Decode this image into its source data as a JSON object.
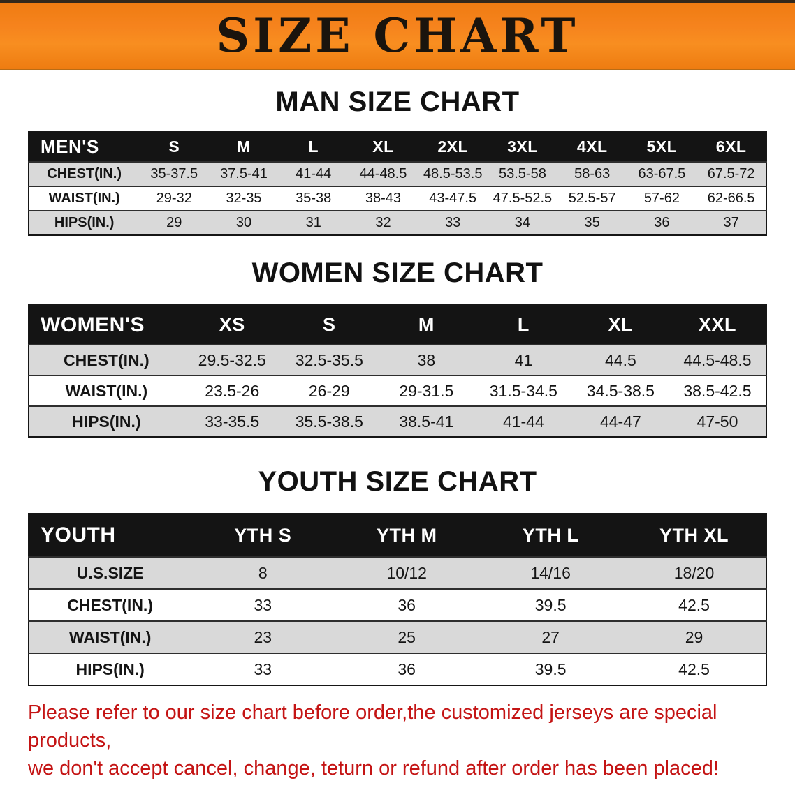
{
  "banner": {
    "title": "SIZE CHART"
  },
  "colors": {
    "banner_bg": "#f6831d",
    "banner_text": "#1a140d",
    "table_header_bg": "#141414",
    "table_header_text": "#ffffff",
    "row_stripe": "#d9d9d9",
    "disclaimer_red": "#c41414"
  },
  "chart_data": [
    {
      "type": "table",
      "title": "MAN SIZE CHART",
      "header": [
        "MEN'S",
        "S",
        "M",
        "L",
        "XL",
        "2XL",
        "3XL",
        "4XL",
        "5XL",
        "6XL"
      ],
      "rows": [
        [
          "CHEST(IN.)",
          "35-37.5",
          "37.5-41",
          "41-44",
          "44-48.5",
          "48.5-53.5",
          "53.5-58",
          "58-63",
          "63-67.5",
          "67.5-72"
        ],
        [
          "WAIST(IN.)",
          "29-32",
          "32-35",
          "35-38",
          "38-43",
          "43-47.5",
          "47.5-52.5",
          "52.5-57",
          "57-62",
          "62-66.5"
        ],
        [
          "HIPS(IN.)",
          "29",
          "30",
          "31",
          "32",
          "33",
          "34",
          "35",
          "36",
          "37"
        ]
      ]
    },
    {
      "type": "table",
      "title": "WOMEN SIZE CHART",
      "header": [
        "WOMEN'S",
        "XS",
        "S",
        "M",
        "L",
        "XL",
        "XXL"
      ],
      "rows": [
        [
          "CHEST(IN.)",
          "29.5-32.5",
          "32.5-35.5",
          "38",
          "41",
          "44.5",
          "44.5-48.5"
        ],
        [
          "WAIST(IN.)",
          "23.5-26",
          "26-29",
          "29-31.5",
          "31.5-34.5",
          "34.5-38.5",
          "38.5-42.5"
        ],
        [
          "HIPS(IN.)",
          "33-35.5",
          "35.5-38.5",
          "38.5-41",
          "41-44",
          "44-47",
          "47-50"
        ]
      ]
    },
    {
      "type": "table",
      "title": "YOUTH SIZE CHART",
      "header": [
        "YOUTH",
        "YTH S",
        "YTH M",
        "YTH L",
        "YTH XL"
      ],
      "rows": [
        [
          "U.S.SIZE",
          "8",
          "10/12",
          "14/16",
          "18/20"
        ],
        [
          "CHEST(IN.)",
          "33",
          "36",
          "39.5",
          "42.5"
        ],
        [
          "WAIST(IN.)",
          "23",
          "25",
          "27",
          "29"
        ],
        [
          "HIPS(IN.)",
          "33",
          "36",
          "39.5",
          "42.5"
        ]
      ]
    }
  ],
  "disclaimer": {
    "line1": "Please refer to our size chart before order,the customized jerseys are special products,",
    "line2": "we don't accept cancel, change, teturn or refund after order has been placed!"
  }
}
